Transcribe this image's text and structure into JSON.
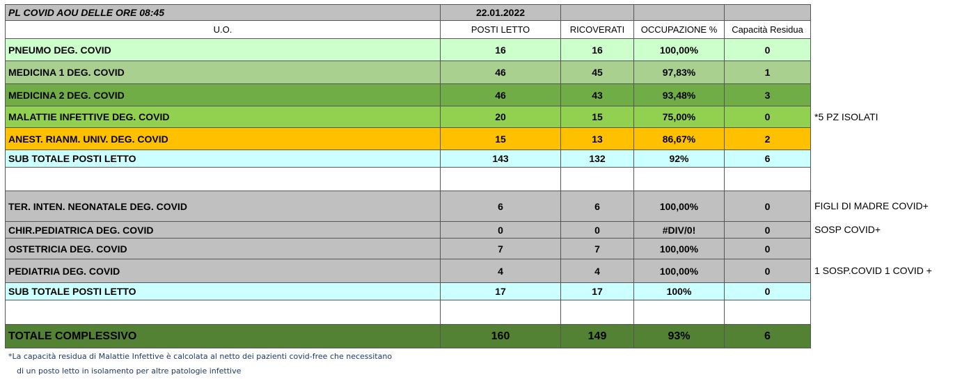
{
  "title": {
    "text": "PL COVID AOU DELLE ORE  08:45",
    "date": "22.01.2022"
  },
  "headers": [
    "U.O.",
    "POSTI LETTO",
    "RICOVERATI",
    "OCCUPAZIONE %",
    "Capacità Residua"
  ],
  "colors": {
    "title": "#c0c0c0",
    "pneumo": "#ccffcc",
    "medicina1": "#a9d08e",
    "medicina2": "#70ad47",
    "malattie": "#92d050",
    "anest": "#ffc000",
    "subtotal": "#ccffff",
    "gray": "#c0c0c0",
    "total": "#548235",
    "empty": "#ffffff"
  },
  "rows": [
    {
      "cells": [
        "PNEUMO  DEG. COVID",
        "16",
        "16",
        "100,00%",
        "0"
      ],
      "color": "pneumo",
      "note": ""
    },
    {
      "cells": [
        "MEDICINA 1 DEG. COVID",
        "46",
        "45",
        "97,83%",
        "1"
      ],
      "color": "medicina1",
      "note": ""
    },
    {
      "cells": [
        "MEDICINA 2 DEG. COVID",
        "46",
        "43",
        "93,48%",
        "3"
      ],
      "color": "medicina2",
      "note": ""
    },
    {
      "cells": [
        "MALATTIE INFETTIVE  DEG. COVID",
        "20",
        "15",
        "75,00%",
        "0"
      ],
      "color": "malattie",
      "note": "*5 PZ  ISOLATI"
    },
    {
      "cells": [
        "ANEST. RIANM. UNIV. DEG. COVID",
        "15",
        "13",
        "86,67%",
        "2"
      ],
      "color": "anest",
      "note": ""
    },
    {
      "cells": [
        "SUB TOTALE POSTI LETTO",
        "143",
        "132",
        "92%",
        "6"
      ],
      "color": "subtotal",
      "note": ""
    },
    {
      "cells": [
        "",
        "",
        "",
        "",
        ""
      ],
      "color": "empty",
      "note": ""
    },
    {
      "cells": [
        "TER. INTEN. NEONATALE DEG. COVID",
        "6",
        "6",
        "100,00%",
        "0"
      ],
      "color": "gray",
      "note": "FIGLI DI MADRE COVID+"
    },
    {
      "cells": [
        "CHIR.PEDIATRICA DEG. COVID",
        "0",
        "0",
        "#DIV/0!",
        "0"
      ],
      "color": "gray",
      "note": "SOSP COVID+"
    },
    {
      "cells": [
        "OSTETRICIA DEG.  COVID",
        "7",
        "7",
        "100,00%",
        "0"
      ],
      "color": "gray",
      "note": ""
    },
    {
      "cells": [
        "PEDIATRIA DEG.  COVID",
        "4",
        "4",
        "100,00%",
        "0"
      ],
      "color": "gray",
      "note": "1 SOSP.COVID 1 COVID +"
    },
    {
      "cells": [
        "SUB TOTALE POSTI LETTO",
        "17",
        "17",
        "100%",
        "0"
      ],
      "color": "subtotal",
      "note": ""
    },
    {
      "cells": [
        "",
        "",
        "",
        "",
        ""
      ],
      "color": "empty",
      "note": ""
    },
    {
      "cells": [
        "TOTALE  COMPLESSIVO",
        "160",
        "149",
        "93%",
        "6"
      ],
      "color": "total",
      "note": ""
    }
  ],
  "footnote": [
    "*La capacità residua di Malattie Infettive è calcolata al netto dei pazienti covid-free che necessitano",
    "di un posto letto in isolamento per altre patologie infettive"
  ]
}
